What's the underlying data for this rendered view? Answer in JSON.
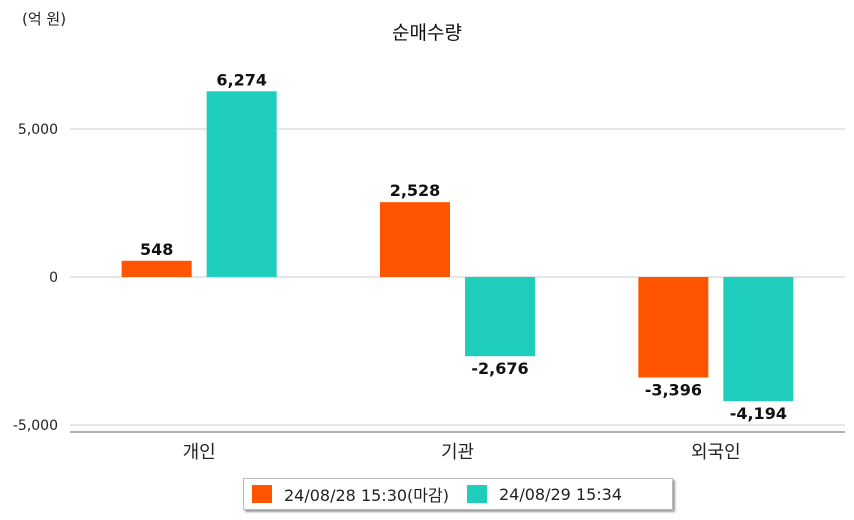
{
  "unit_label": "(억 원)",
  "chart_data": {
    "type": "bar",
    "title": "순매수량",
    "categories": [
      "개인",
      "기관",
      "외국인"
    ],
    "series": [
      {
        "name": "24/08/28 15:30(마감)",
        "color": "#ff5500",
        "values": [
          548,
          2528,
          -3396
        ]
      },
      {
        "name": "24/08/29 15:34",
        "color": "#1ecdbb",
        "values": [
          6274,
          -2676,
          -4194
        ]
      }
    ],
    "ylim": [
      -5000,
      5000
    ],
    "yticks": [
      5000,
      0,
      -5000
    ],
    "ytick_labels": [
      "5,000",
      "0",
      "-5,000"
    ],
    "data_labels": [
      [
        "548",
        "2,528",
        "-3,396"
      ],
      [
        "6,274",
        "-2,676",
        "-4,194"
      ]
    ],
    "grid": true,
    "legend": "bottom"
  }
}
